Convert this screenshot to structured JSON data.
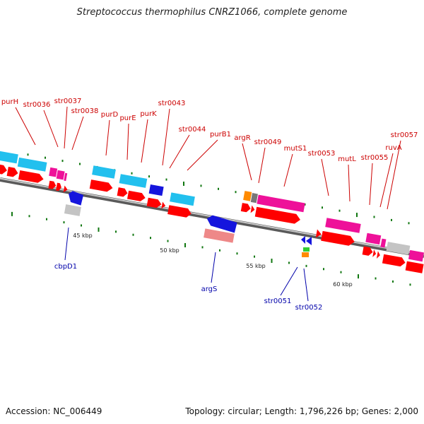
{
  "title": "Streptococcus thermophilus CNRZ1066, complete genome",
  "accession_text": "Accession: NC_006449",
  "summary_text": "Topology: circular; Length: 1,796,226 bp; Genes: 2,000",
  "colors": {
    "backbone": "#8a8a8a",
    "cds_forward": "#ff0000",
    "label_top": "#cc0000",
    "label_bottom": "#0000aa",
    "cyan": "#22c0ee",
    "magenta": "#ee1199",
    "blue": "#1515dd",
    "grey": "#c4c4c4",
    "pink": "#ee8888",
    "orange": "#ff8a00",
    "green": "#33cc33",
    "tick_green": "#117711"
  },
  "scale_labels": [
    "45 kbp",
    "50 kbp",
    "55 kbp",
    "60 kbp"
  ],
  "top_labels": [
    "purH",
    "str0036",
    "str0037",
    "str0038",
    "purD",
    "purE",
    "purK",
    "str0043",
    "str0044",
    "purB1",
    "argR",
    "str0049",
    "mutS1",
    "str0053",
    "mutL",
    "str0055",
    "ruvA",
    "str0057"
  ],
  "bottom_labels": [
    "cbpD1",
    "argS",
    "str0051",
    "str0052"
  ]
}
